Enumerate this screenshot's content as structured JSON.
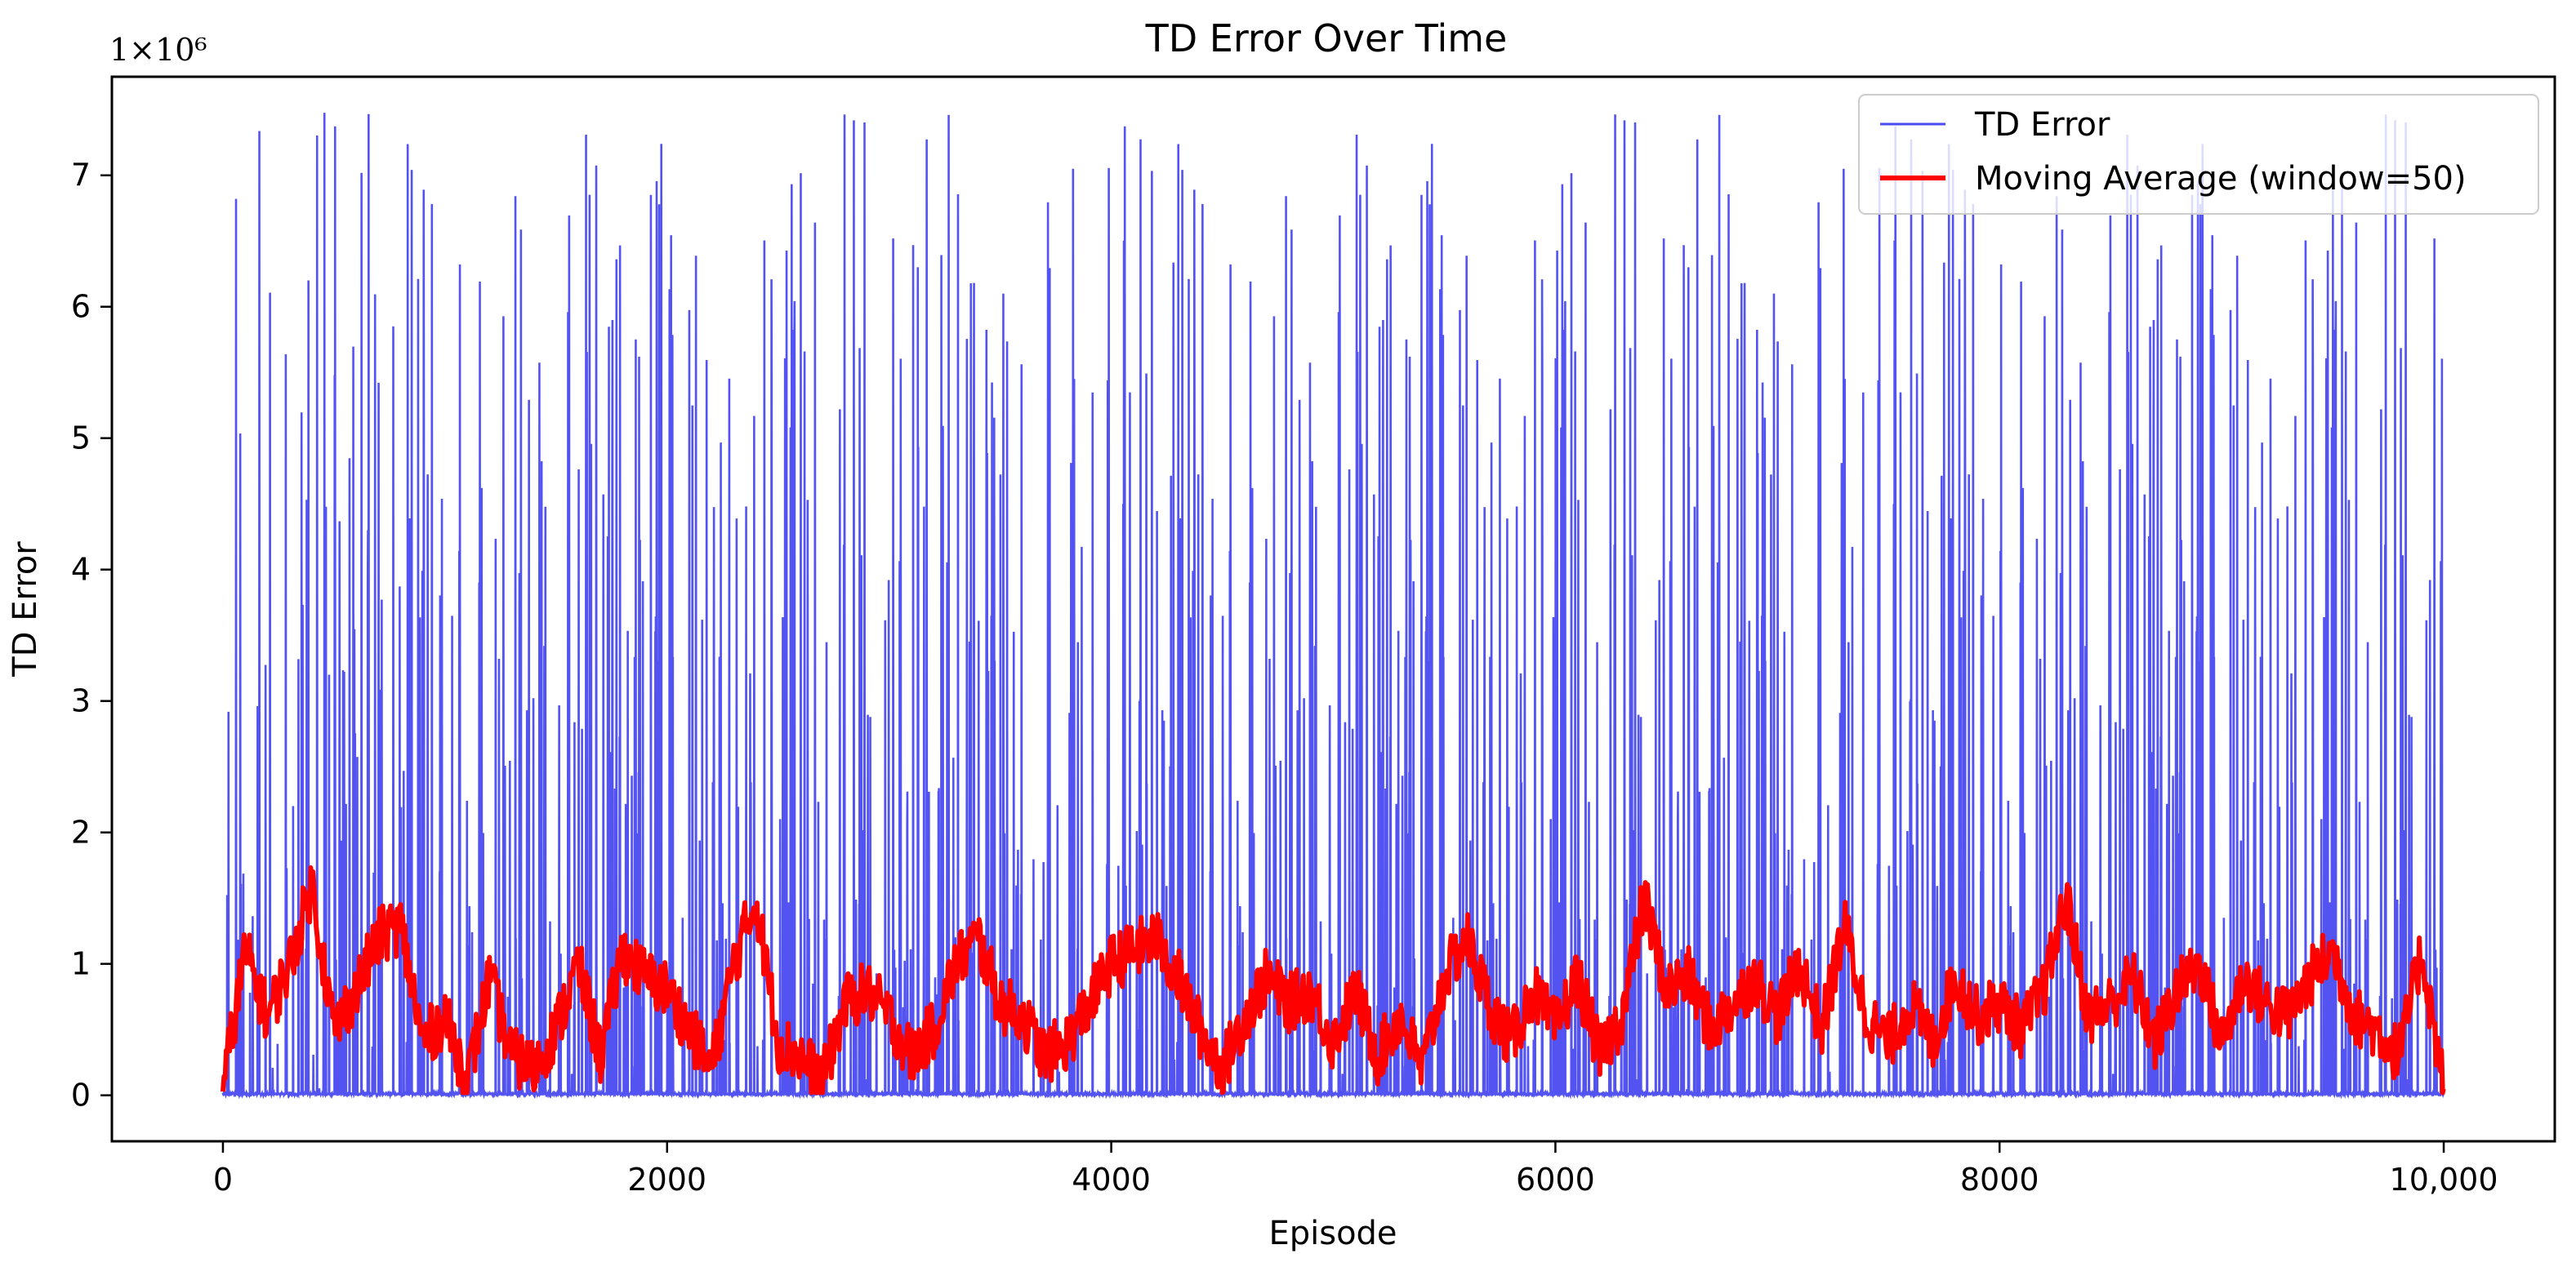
{
  "chart_data": {
    "type": "line",
    "title": "TD Error Over Time",
    "xlabel": "Episode",
    "ylabel": "TD Error",
    "y_multiplier": "1×10⁶",
    "xlim": [
      -500,
      10500
    ],
    "ylim": [
      -0.35,
      7.75
    ],
    "x_ticks": [
      0,
      2000,
      4000,
      6000,
      8000,
      10000
    ],
    "x_tick_labels": [
      "0",
      "2000",
      "4000",
      "6000",
      "8000",
      "10,000"
    ],
    "y_ticks": [
      0,
      1,
      2,
      3,
      4,
      5,
      6,
      7
    ],
    "y_tick_labels": [
      "0",
      "1",
      "2",
      "3",
      "4",
      "5",
      "6",
      "7"
    ],
    "grid": false,
    "legend_position": "top-right",
    "series": [
      {
        "name": "TD Error",
        "color": "#4a4af0",
        "description_of_values": "10000 episodes; mostly near 0 with frequent spikes between 1 and 7.5 (×10⁶)",
        "n_points": 10000,
        "baseline": 0.02,
        "spike_max": 7.48
      },
      {
        "name": "Moving Average (window=50)",
        "color": "#ff0000",
        "window": 50,
        "x": [
          0,
          100,
          200,
          300,
          400,
          500,
          600,
          700,
          800,
          900,
          1000,
          1100,
          1200,
          1300,
          1400,
          1500,
          1600,
          1700,
          1800,
          1900,
          2000,
          2100,
          2200,
          2300,
          2400,
          2500,
          2600,
          2700,
          2800,
          2900,
          3000,
          3100,
          3200,
          3300,
          3400,
          3500,
          3600,
          3700,
          3800,
          3900,
          4000,
          4100,
          4200,
          4300,
          4400,
          4500,
          4600,
          4700,
          4800,
          4900,
          5000,
          5100,
          5200,
          5300,
          5400,
          5500,
          5600,
          5700,
          5800,
          5900,
          6000,
          6100,
          6200,
          6300,
          6400,
          6500,
          6600,
          6700,
          6800,
          6900,
          7000,
          7100,
          7200,
          7300,
          7400,
          7500,
          7600,
          7700,
          7800,
          7900,
          8000,
          8100,
          8200,
          8300,
          8400,
          8500,
          8600,
          8700,
          8800,
          8900,
          9000,
          9100,
          9200,
          9300,
          9400,
          9500,
          9600,
          9700,
          9800,
          9900,
          10000
        ],
        "values": [
          0.05,
          1.1,
          0.6,
          1.0,
          1.6,
          0.5,
          0.8,
          1.2,
          1.3,
          0.4,
          0.6,
          0.1,
          0.9,
          0.3,
          0.2,
          0.5,
          1.0,
          0.3,
          1.1,
          0.9,
          0.8,
          0.5,
          0.2,
          1.0,
          1.5,
          0.4,
          0.3,
          0.1,
          0.7,
          0.8,
          0.6,
          0.3,
          0.5,
          1.0,
          1.2,
          0.7,
          0.6,
          0.3,
          0.4,
          0.7,
          1.0,
          1.1,
          1.2,
          0.9,
          0.5,
          0.2,
          0.6,
          0.9,
          0.7,
          0.8,
          0.4,
          0.8,
          0.3,
          0.6,
          0.2,
          0.9,
          1.2,
          0.7,
          0.4,
          0.8,
          0.5,
          0.9,
          0.3,
          0.6,
          1.5,
          0.8,
          0.9,
          0.5,
          0.7,
          0.9,
          0.6,
          1.0,
          0.5,
          1.3,
          0.6,
          0.4,
          0.7,
          0.4,
          0.9,
          0.6,
          0.7,
          0.5,
          0.8,
          1.5,
          0.6,
          0.7,
          0.9,
          0.4,
          0.8,
          1.0,
          0.4,
          0.9,
          0.7,
          0.6,
          0.9,
          1.1,
          0.6,
          0.5,
          0.3,
          1.1,
          0.05
        ]
      }
    ]
  }
}
